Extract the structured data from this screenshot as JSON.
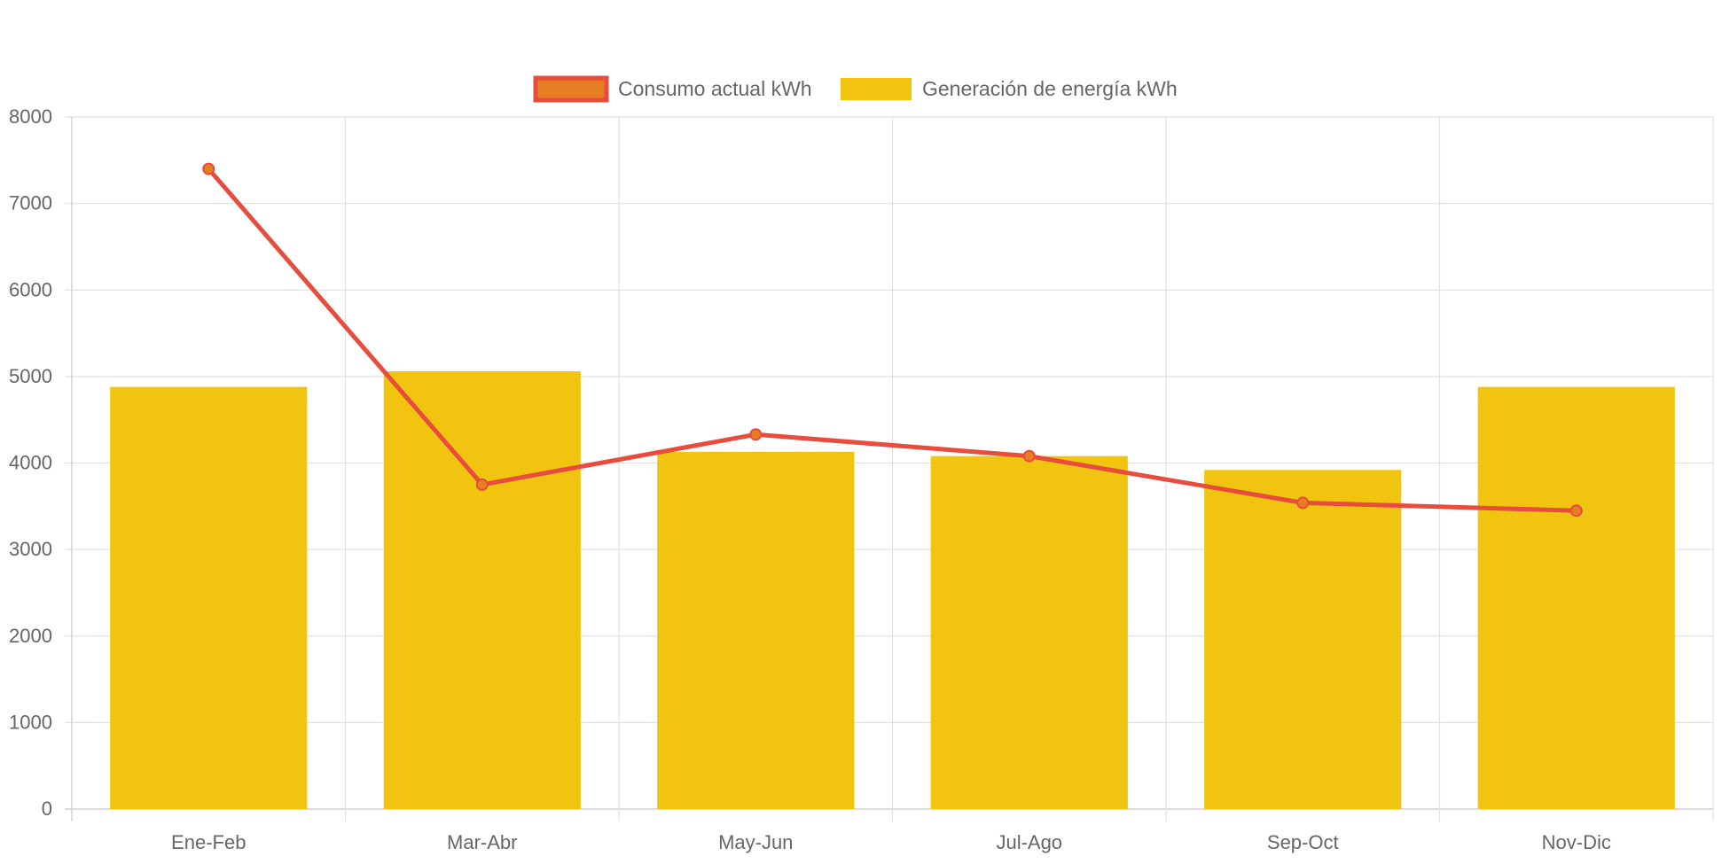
{
  "chart_data": {
    "type": "bar",
    "categories": [
      "Ene-Feb",
      "Mar-Abr",
      "May-Jun",
      "Jul-Ago",
      "Sep-Oct",
      "Nov-Dic"
    ],
    "series": [
      {
        "name": "Consumo actual kWh",
        "type": "line",
        "values": [
          7400,
          3750,
          4330,
          4080,
          3540,
          3450
        ],
        "color": "#e74c3c",
        "point_color": "#e67e22"
      },
      {
        "name": "Generación de energía kWh",
        "type": "bar",
        "values": [
          4880,
          5060,
          4130,
          4080,
          3920,
          4880
        ],
        "color": "#f1c40f"
      }
    ],
    "ylim": [
      0,
      8000
    ],
    "yticks": [
      0,
      1000,
      2000,
      3000,
      4000,
      5000,
      6000,
      7000,
      8000
    ],
    "grid": true,
    "legend_position": "top-center"
  }
}
